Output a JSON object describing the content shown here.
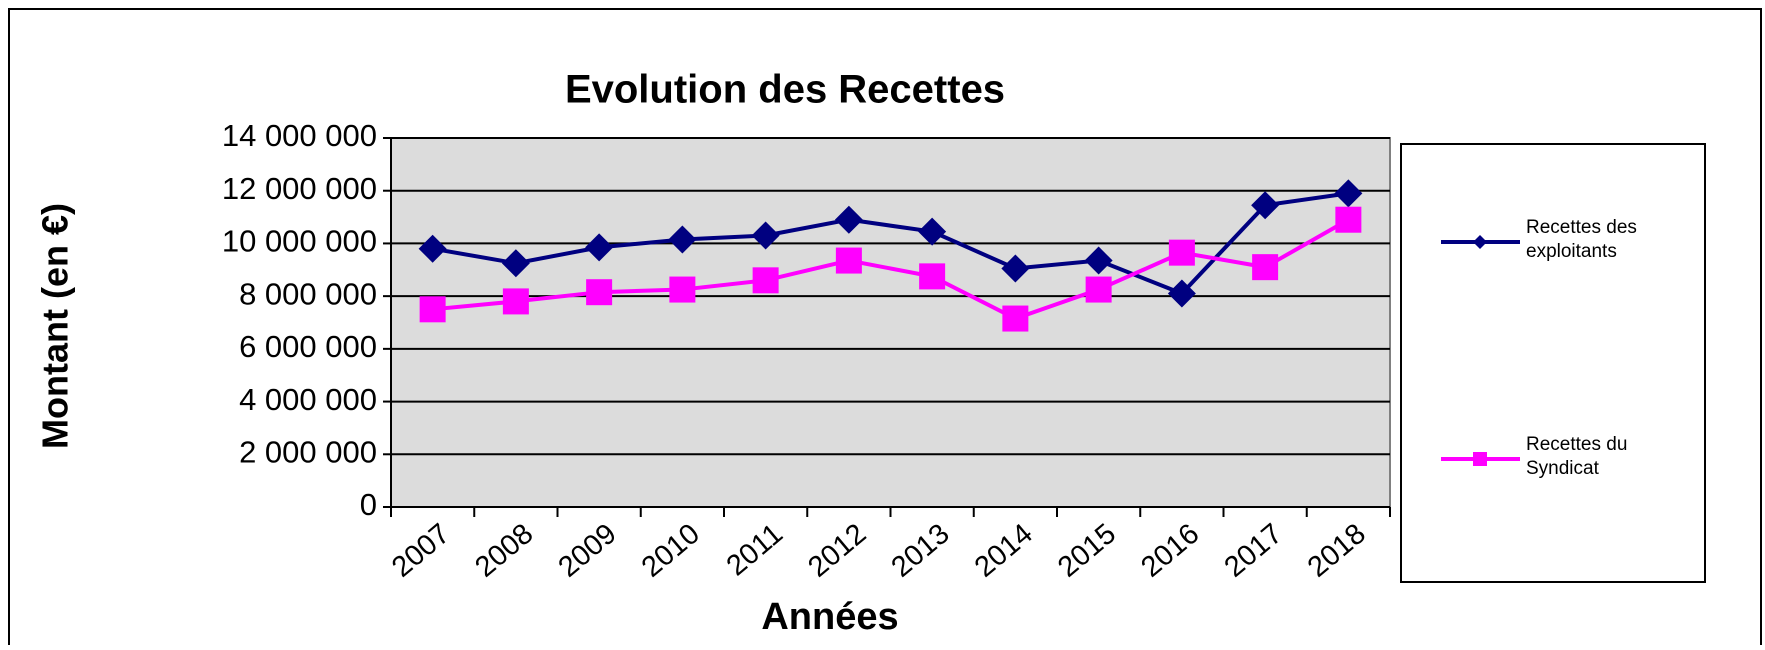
{
  "chart_data": {
    "type": "line",
    "title": "Evolution des Recettes",
    "x_label": "Années",
    "y_label": "Montant (en €)",
    "categories": [
      "2007",
      "2008",
      "2009",
      "2010",
      "2011",
      "2012",
      "2013",
      "2014",
      "2015",
      "2016",
      "2017",
      "2018"
    ],
    "series": [
      {
        "name": "Recettes des exploitants",
        "color": "#000080",
        "marker": "diamond",
        "values": [
          9800000,
          9250000,
          9850000,
          10150000,
          10300000,
          10900000,
          10450000,
          9050000,
          9350000,
          8100000,
          11450000,
          11900000
        ]
      },
      {
        "name": "Recettes du Syndicat",
        "color": "#ff00ff",
        "marker": "square",
        "values": [
          7500000,
          7800000,
          8150000,
          8250000,
          8600000,
          9350000,
          8750000,
          7150000,
          8250000,
          9650000,
          9100000,
          10900000
        ]
      }
    ],
    "ylim": [
      0,
      14000000
    ],
    "yticks": [
      0,
      {
        "value": 2000000,
        "label": "2 000 000"
      },
      {
        "value": 4000000,
        "label": "4 000 000"
      },
      {
        "value": 6000000,
        "label": "6 000 000"
      },
      {
        "value": 8000000,
        "label": "8 000 000"
      },
      {
        "value": 10000000,
        "label": "10 000 000"
      },
      {
        "value": 12000000,
        "label": "12 000 000"
      },
      {
        "value": 14000000,
        "label": "14 000 000"
      }
    ],
    "grid": true,
    "legend": "right"
  }
}
